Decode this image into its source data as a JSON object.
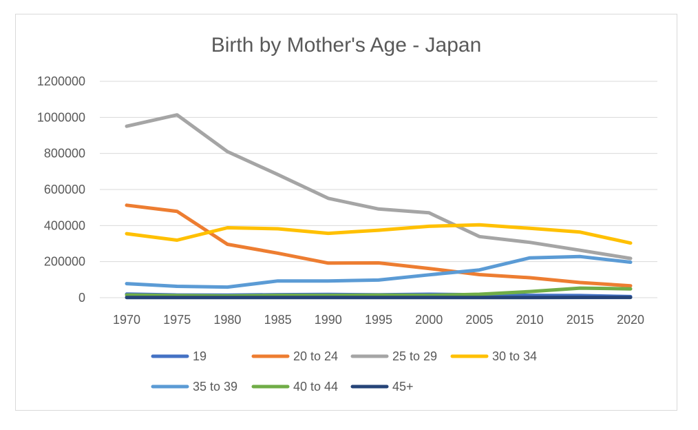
{
  "chart_data": {
    "type": "line",
    "title": "Birth by Mother's Age - Japan",
    "xlabel": "",
    "ylabel": "",
    "x": [
      "1970",
      "1975",
      "1980",
      "1985",
      "1990",
      "1995",
      "2000",
      "2005",
      "2010",
      "2015",
      "2020"
    ],
    "ylim": [
      0,
      1200000
    ],
    "yticks": [
      "0",
      "200000",
      "400000",
      "600000",
      "800000",
      "1000000",
      "1200000"
    ],
    "grid": true,
    "legend_position": "bottom",
    "series": [
      {
        "name": "19",
        "color": "#4472c4",
        "values": [
          20000,
          15000,
          14000,
          17000,
          18000,
          16000,
          19000,
          16000,
          13000,
          12000,
          6000
        ]
      },
      {
        "name": "20 to 24",
        "color": "#ed7d31",
        "values": [
          513000,
          479000,
          296000,
          247000,
          192000,
          193000,
          162000,
          128000,
          111000,
          84000,
          66000
        ]
      },
      {
        "name": "25 to 29",
        "color": "#a5a5a5",
        "values": [
          951000,
          1014000,
          810000,
          683000,
          551000,
          492000,
          471000,
          339000,
          307000,
          263000,
          218000
        ]
      },
      {
        "name": "30 to 34",
        "color": "#ffc000",
        "values": [
          355000,
          319000,
          388000,
          382000,
          357000,
          374000,
          396000,
          404000,
          385000,
          364000,
          303000
        ]
      },
      {
        "name": "35 to 39",
        "color": "#5b9bd5",
        "values": [
          78000,
          63000,
          59000,
          93000,
          93000,
          98000,
          127000,
          154000,
          221000,
          228000,
          197000
        ]
      },
      {
        "name": "40 to 44",
        "color": "#70ad47",
        "values": [
          15000,
          12000,
          10000,
          13000,
          13000,
          14000,
          13000,
          19000,
          34000,
          53000,
          49000
        ]
      },
      {
        "name": "45+",
        "color": "#264478",
        "values": [
          1000,
          1000,
          1000,
          1000,
          1000,
          1000,
          1000,
          1000,
          1000,
          1500,
          1500
        ]
      }
    ]
  }
}
